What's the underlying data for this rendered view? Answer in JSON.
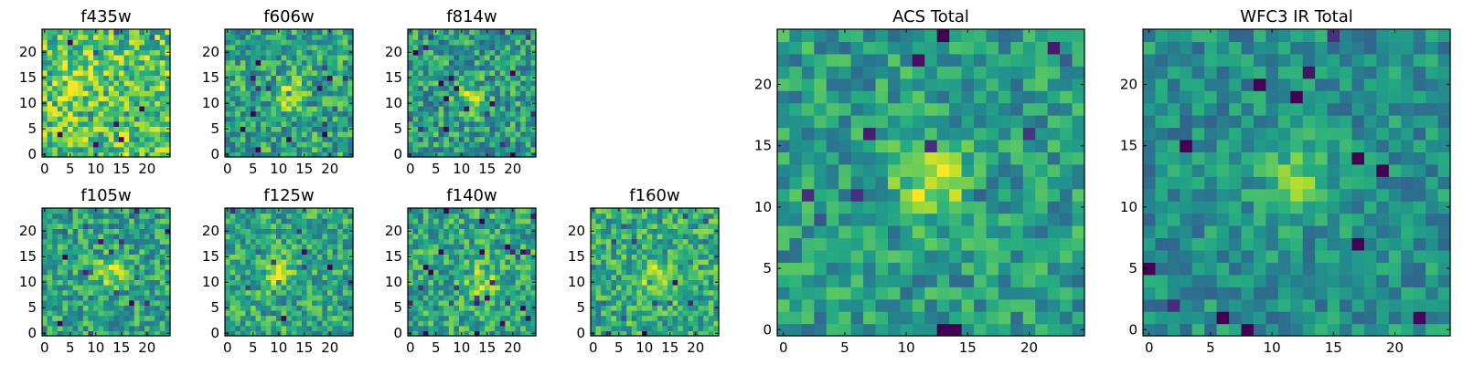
{
  "figure": {
    "description_type": "grid of 2D image cutouts",
    "colormap": "viridis"
  },
  "chart_data": [
    {
      "type": "heatmap",
      "title": "f435w",
      "size": [
        25,
        25
      ],
      "xlim": [
        0,
        24
      ],
      "ylim": [
        0,
        24
      ],
      "xticks": [
        0,
        5,
        10,
        15,
        20
      ],
      "yticks": [
        0,
        5,
        10,
        15,
        20
      ],
      "blob": {
        "x": 6,
        "y": 15,
        "strength": 0.22
      },
      "seed": 11,
      "noise": 0.55,
      "base": 0.72
    },
    {
      "type": "heatmap",
      "title": "f606w",
      "size": [
        25,
        25
      ],
      "xlim": [
        0,
        24
      ],
      "ylim": [
        0,
        24
      ],
      "xticks": [
        0,
        5,
        10,
        15,
        20
      ],
      "yticks": [
        0,
        5,
        10,
        15,
        20
      ],
      "blob": {
        "x": 12,
        "y": 12,
        "strength": 0.35
      },
      "seed": 23,
      "noise": 0.5,
      "base": 0.58
    },
    {
      "type": "heatmap",
      "title": "f814w",
      "size": [
        25,
        25
      ],
      "xlim": [
        0,
        24
      ],
      "ylim": [
        0,
        24
      ],
      "xticks": [
        0,
        5,
        10,
        15,
        20
      ],
      "yticks": [
        0,
        5,
        10,
        15,
        20
      ],
      "blob": {
        "x": 12,
        "y": 11,
        "strength": 0.3
      },
      "seed": 37,
      "noise": 0.5,
      "base": 0.55
    },
    {
      "type": "heatmap",
      "title": "f105w",
      "size": [
        25,
        25
      ],
      "xlim": [
        0,
        24
      ],
      "ylim": [
        0,
        24
      ],
      "xticks": [
        0,
        5,
        10,
        15,
        20
      ],
      "yticks": [
        0,
        5,
        10,
        15,
        20
      ],
      "blob": {
        "x": 13,
        "y": 12,
        "strength": 0.3
      },
      "seed": 41,
      "noise": 0.45,
      "base": 0.58
    },
    {
      "type": "heatmap",
      "title": "f125w",
      "size": [
        25,
        25
      ],
      "xlim": [
        0,
        24
      ],
      "ylim": [
        0,
        24
      ],
      "xticks": [
        0,
        5,
        10,
        15,
        20
      ],
      "yticks": [
        0,
        5,
        10,
        15,
        20
      ],
      "blob": {
        "x": 10,
        "y": 12,
        "strength": 0.3
      },
      "seed": 53,
      "noise": 0.45,
      "base": 0.6
    },
    {
      "type": "heatmap",
      "title": "f140w",
      "size": [
        25,
        25
      ],
      "xlim": [
        0,
        24
      ],
      "ylim": [
        0,
        24
      ],
      "xticks": [
        0,
        5,
        10,
        15,
        20
      ],
      "yticks": [
        0,
        5,
        10,
        15,
        20
      ],
      "blob": {
        "x": 14,
        "y": 10,
        "strength": 0.3
      },
      "seed": 67,
      "noise": 0.45,
      "base": 0.6
    },
    {
      "type": "heatmap",
      "title": "f160w",
      "size": [
        25,
        25
      ],
      "xlim": [
        0,
        24
      ],
      "ylim": [
        0,
        24
      ],
      "xticks": [
        0,
        5,
        10,
        15,
        20
      ],
      "yticks": [
        0,
        5,
        10,
        15,
        20
      ],
      "blob": {
        "x": 12,
        "y": 11,
        "strength": 0.3
      },
      "seed": 79,
      "noise": 0.45,
      "base": 0.62
    },
    {
      "type": "heatmap",
      "title": "ACS Total",
      "size": [
        25,
        25
      ],
      "xlim": [
        0,
        24
      ],
      "ylim": [
        0,
        24
      ],
      "xticks": [
        0,
        5,
        10,
        15,
        20
      ],
      "yticks": [
        0,
        5,
        10,
        15,
        20
      ],
      "blob": {
        "x": 12,
        "y": 12,
        "strength": 0.38
      },
      "seed": 97,
      "noise": 0.4,
      "base": 0.55
    },
    {
      "type": "heatmap",
      "title": "WFC3 IR Total",
      "size": [
        25,
        25
      ],
      "xlim": [
        0,
        24
      ],
      "ylim": [
        0,
        24
      ],
      "xticks": [
        0,
        5,
        10,
        15,
        20
      ],
      "yticks": [
        0,
        5,
        10,
        15,
        20
      ],
      "blob": {
        "x": 12,
        "y": 12,
        "strength": 0.35
      },
      "seed": 113,
      "noise": 0.35,
      "base": 0.5
    }
  ]
}
